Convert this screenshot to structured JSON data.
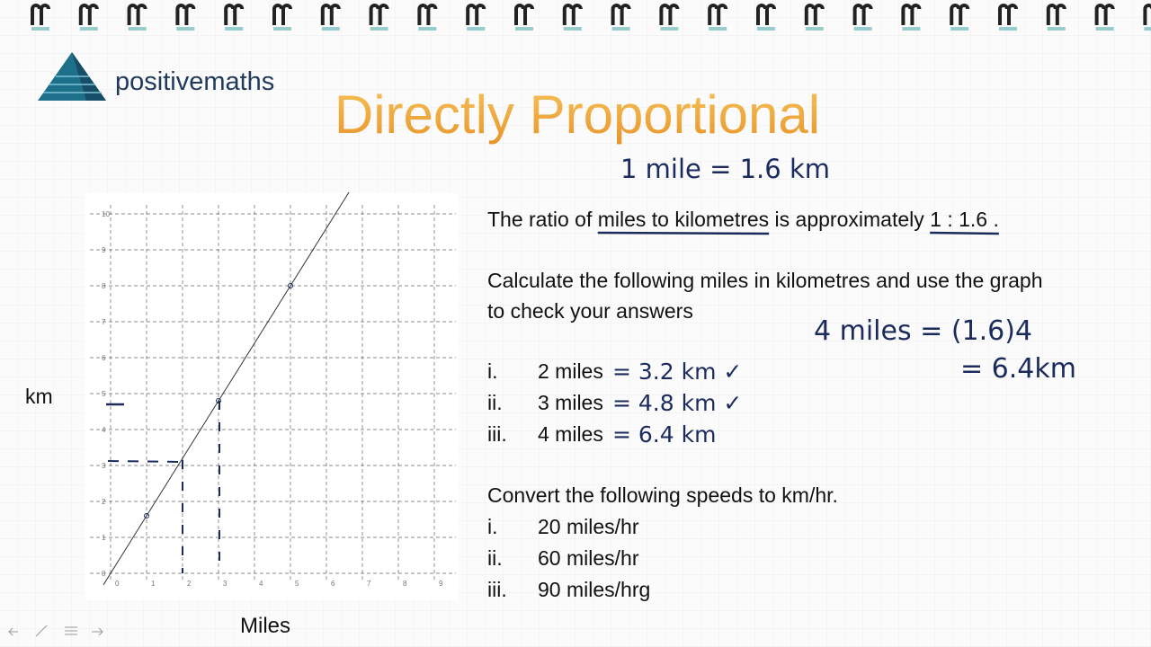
{
  "logo": {
    "text": "positivemaths"
  },
  "title": "Directly Proportional",
  "note": "1 mile = 1.6 km",
  "ratio": {
    "parts": [
      "The ratio of ",
      "miles to kilometres",
      " is approximately ",
      "1 : 1.6 ."
    ]
  },
  "instruction": [
    "Calculate the following miles in kilometres and use the graph",
    "to check your answers"
  ],
  "questions": [
    {
      "num": "i.",
      "text": "2 miles",
      "answer": "= 3.2 km ✓"
    },
    {
      "num": "ii.",
      "text": "3 miles",
      "answer": "= 4.8 km ✓"
    },
    {
      "num": "iii.",
      "text": "4 miles",
      "answer": "= 6.4 km"
    }
  ],
  "working": [
    "4 miles = (1.6)4",
    "= 6.4km"
  ],
  "speeds": {
    "heading": "Convert the following speeds to km/hr.",
    "items": [
      {
        "num": "i.",
        "text": "20 miles/hr"
      },
      {
        "num": "ii.",
        "text": "60 miles/hr"
      },
      {
        "num": "iii.",
        "text": "90 miles/hrg"
      }
    ]
  },
  "graph": {
    "x_label": "Miles",
    "y_label": "km",
    "xlim": [
      0,
      9.5
    ],
    "ylim": [
      0,
      10
    ],
    "xticks": [
      0,
      1,
      2,
      3,
      4,
      5,
      6,
      7,
      8,
      9
    ],
    "yticks": [
      0,
      1,
      2,
      3,
      4,
      5,
      6,
      7,
      8,
      9,
      10
    ],
    "grid": true,
    "points": {
      "x": [
        1,
        3,
        5
      ],
      "y": [
        1.6,
        4.8,
        8
      ]
    },
    "color": "#333333"
  }
}
